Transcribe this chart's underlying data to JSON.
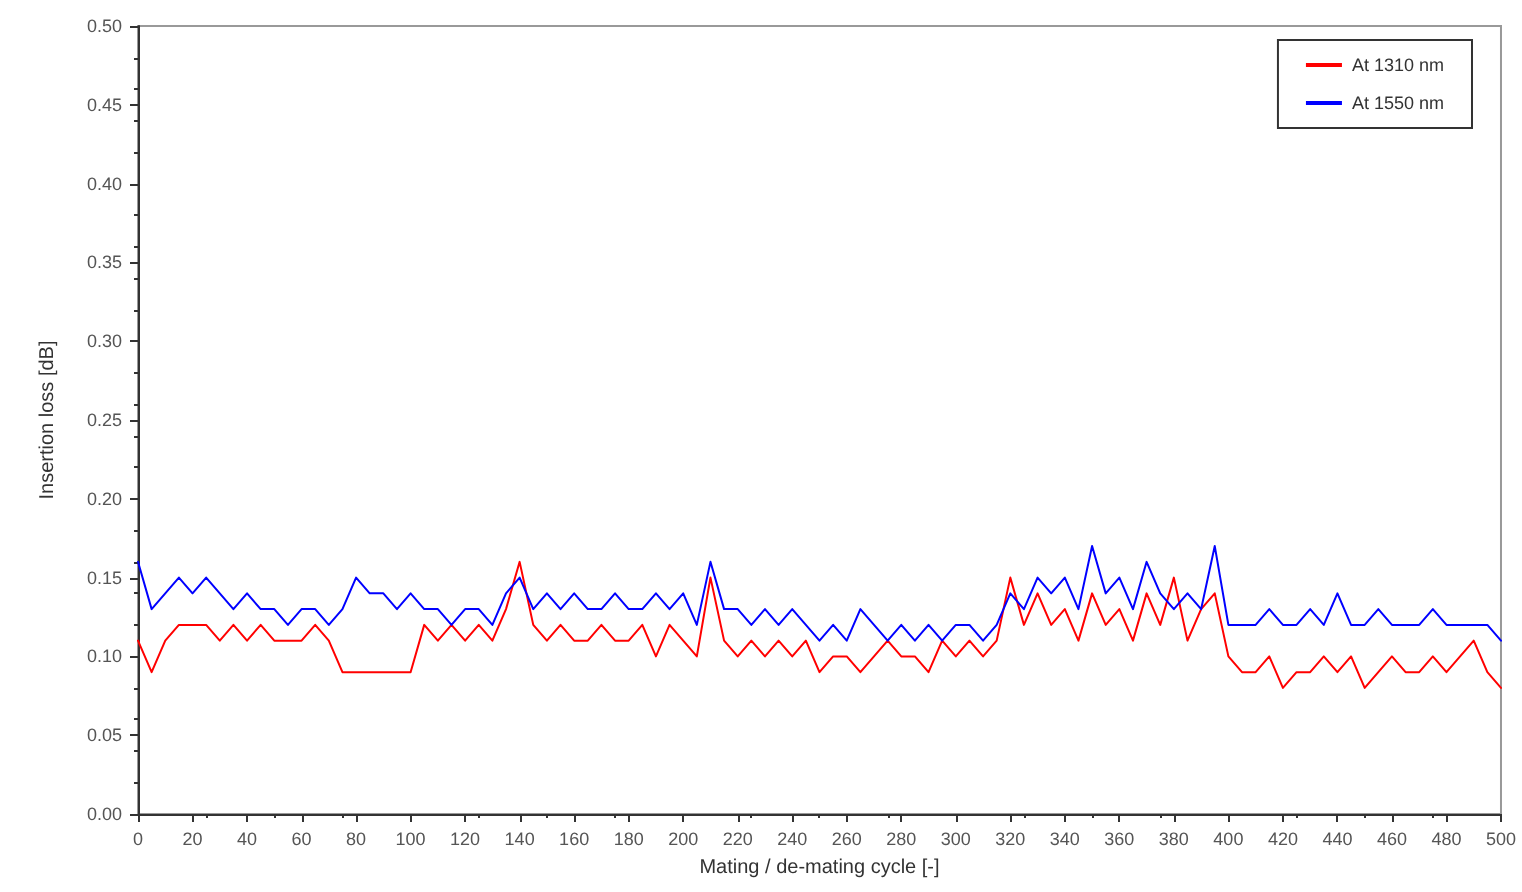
{
  "chart_data": {
    "type": "line",
    "xlabel": "Mating / de-mating cycle [-]",
    "ylabel": "Insertion loss [dB]",
    "x": [
      0,
      5,
      10,
      15,
      20,
      25,
      30,
      35,
      40,
      45,
      50,
      55,
      60,
      65,
      70,
      75,
      80,
      85,
      90,
      95,
      100,
      105,
      110,
      115,
      120,
      125,
      130,
      135,
      140,
      145,
      150,
      155,
      160,
      165,
      170,
      175,
      180,
      185,
      190,
      195,
      200,
      205,
      210,
      215,
      220,
      225,
      230,
      235,
      240,
      245,
      250,
      255,
      260,
      265,
      270,
      275,
      280,
      285,
      290,
      295,
      300,
      305,
      310,
      315,
      320,
      325,
      330,
      335,
      340,
      345,
      350,
      355,
      360,
      365,
      370,
      375,
      380,
      385,
      390,
      395,
      400,
      405,
      410,
      415,
      420,
      425,
      430,
      435,
      440,
      445,
      450,
      455,
      460,
      465,
      470,
      475,
      480,
      485,
      490,
      495,
      500
    ],
    "series": [
      {
        "name": "At 1310 nm",
        "color": "#ff0000",
        "values": [
          0.11,
          0.09,
          0.11,
          0.12,
          0.12,
          0.12,
          0.11,
          0.12,
          0.11,
          0.12,
          0.11,
          0.11,
          0.11,
          0.12,
          0.11,
          0.09,
          0.09,
          0.09,
          0.09,
          0.09,
          0.09,
          0.12,
          0.11,
          0.12,
          0.11,
          0.12,
          0.11,
          0.13,
          0.16,
          0.12,
          0.11,
          0.12,
          0.11,
          0.11,
          0.12,
          0.11,
          0.11,
          0.12,
          0.1,
          0.12,
          0.11,
          0.1,
          0.15,
          0.11,
          0.1,
          0.11,
          0.1,
          0.11,
          0.1,
          0.11,
          0.09,
          0.1,
          0.1,
          0.09,
          0.1,
          0.11,
          0.1,
          0.1,
          0.09,
          0.11,
          0.1,
          0.11,
          0.1,
          0.11,
          0.15,
          0.12,
          0.14,
          0.12,
          0.13,
          0.11,
          0.14,
          0.12,
          0.13,
          0.11,
          0.14,
          0.12,
          0.15,
          0.11,
          0.13,
          0.14,
          0.1,
          0.09,
          0.09,
          0.1,
          0.08,
          0.09,
          0.09,
          0.1,
          0.09,
          0.1,
          0.08,
          0.09,
          0.1,
          0.09,
          0.09,
          0.1,
          0.09,
          0.1,
          0.11,
          0.09,
          0.08
        ]
      },
      {
        "name": "At 1550 nm",
        "color": "#0000ff",
        "values": [
          0.16,
          0.13,
          0.14,
          0.15,
          0.14,
          0.15,
          0.14,
          0.13,
          0.14,
          0.13,
          0.13,
          0.12,
          0.13,
          0.13,
          0.12,
          0.13,
          0.15,
          0.14,
          0.14,
          0.13,
          0.14,
          0.13,
          0.13,
          0.12,
          0.13,
          0.13,
          0.12,
          0.14,
          0.15,
          0.13,
          0.14,
          0.13,
          0.14,
          0.13,
          0.13,
          0.14,
          0.13,
          0.13,
          0.14,
          0.13,
          0.14,
          0.12,
          0.16,
          0.13,
          0.13,
          0.12,
          0.13,
          0.12,
          0.13,
          0.12,
          0.11,
          0.12,
          0.11,
          0.13,
          0.12,
          0.11,
          0.12,
          0.11,
          0.12,
          0.11,
          0.12,
          0.12,
          0.11,
          0.12,
          0.14,
          0.13,
          0.15,
          0.14,
          0.15,
          0.13,
          0.17,
          0.14,
          0.15,
          0.13,
          0.16,
          0.14,
          0.13,
          0.14,
          0.13,
          0.17,
          0.12,
          0.12,
          0.12,
          0.13,
          0.12,
          0.12,
          0.13,
          0.12,
          0.14,
          0.12,
          0.12,
          0.13,
          0.12,
          0.12,
          0.12,
          0.13,
          0.12,
          0.12,
          0.12,
          0.12,
          0.11
        ]
      }
    ],
    "xlim": [
      0,
      500
    ],
    "xticks": [
      0,
      20,
      40,
      60,
      80,
      100,
      120,
      140,
      160,
      180,
      200,
      220,
      240,
      260,
      280,
      300,
      320,
      340,
      360,
      380,
      400,
      420,
      440,
      460,
      480,
      500
    ],
    "ylim": [
      0,
      0.5
    ],
    "yticks": [
      {
        "value": 0,
        "label": "0.00"
      },
      {
        "value": 0.05,
        "label": "0.05"
      },
      {
        "value": 0.1,
        "label": "0.10"
      },
      {
        "value": 0.15,
        "label": "0.15"
      },
      {
        "value": 0.2,
        "label": "0.20"
      },
      {
        "value": 0.25,
        "label": "0.25"
      },
      {
        "value": 0.3,
        "label": "0.30"
      },
      {
        "value": 0.35,
        "label": "0.35"
      },
      {
        "value": 0.4,
        "label": "0.40"
      },
      {
        "value": 0.45,
        "label": "0.45"
      },
      {
        "value": 0.5,
        "label": "0.50"
      }
    ],
    "grid": false,
    "legend": "top right",
    "marker": "none",
    "line_style": "solid"
  }
}
